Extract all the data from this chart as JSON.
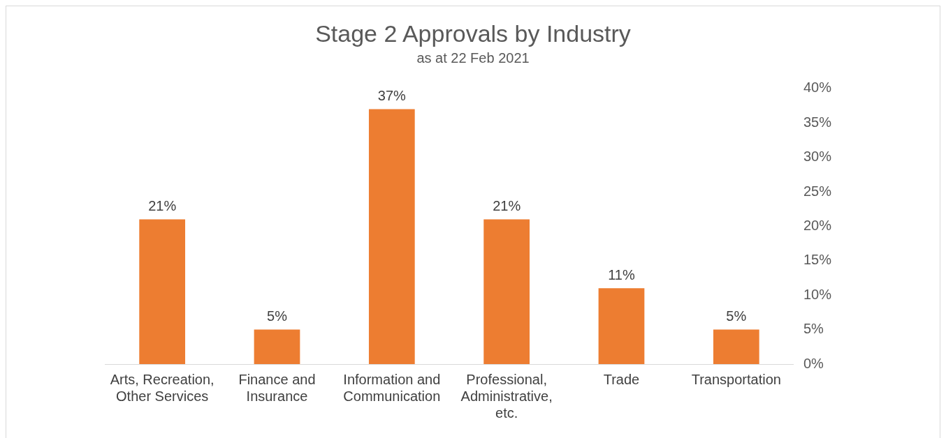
{
  "chart_data": {
    "type": "bar",
    "title": "Stage 2 Approvals by Industry",
    "subtitle": "as at 22 Feb 2021",
    "categories": [
      "Arts, Recreation, Other Services",
      "Finance and Insurance",
      "Information and Communication",
      "Professional, Administrative, etc.",
      "Trade",
      "Transportation"
    ],
    "values": [
      21,
      5,
      37,
      21,
      11,
      5
    ],
    "value_labels": [
      "21%",
      "5%",
      "37%",
      "21%",
      "11%",
      "5%"
    ],
    "color": "#ed7d31",
    "ylim": [
      0,
      40
    ],
    "yticks": [
      {
        "value": 0,
        "label": "0%"
      },
      {
        "value": 5,
        "label": "5%"
      },
      {
        "value": 10,
        "label": "10%"
      },
      {
        "value": 15,
        "label": "15%"
      },
      {
        "value": 20,
        "label": "20%"
      },
      {
        "value": 25,
        "label": "25%"
      },
      {
        "value": 30,
        "label": "30%"
      },
      {
        "value": 35,
        "label": "35%"
      },
      {
        "value": 40,
        "label": "40%"
      }
    ],
    "grid": false,
    "legend": false
  }
}
